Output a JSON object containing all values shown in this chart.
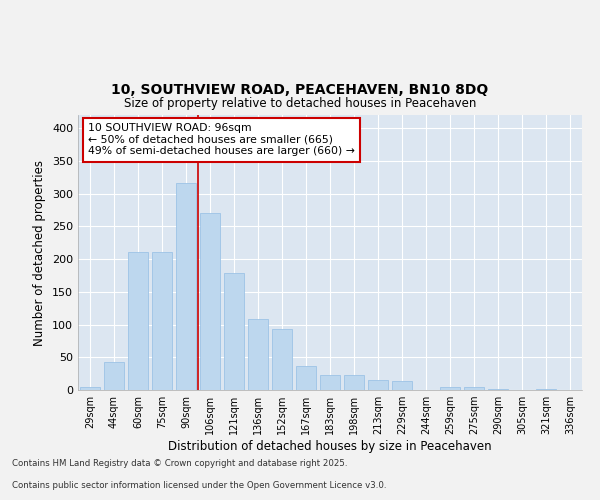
{
  "title_line1": "10, SOUTHVIEW ROAD, PEACEHAVEN, BN10 8DQ",
  "title_line2": "Size of property relative to detached houses in Peacehaven",
  "xlabel": "Distribution of detached houses by size in Peacehaven",
  "ylabel": "Number of detached properties",
  "categories": [
    "29sqm",
    "44sqm",
    "60sqm",
    "75sqm",
    "90sqm",
    "106sqm",
    "121sqm",
    "136sqm",
    "152sqm",
    "167sqm",
    "183sqm",
    "198sqm",
    "213sqm",
    "229sqm",
    "244sqm",
    "259sqm",
    "275sqm",
    "290sqm",
    "305sqm",
    "321sqm",
    "336sqm"
  ],
  "values": [
    5,
    43,
    211,
    211,
    316,
    271,
    178,
    108,
    93,
    37,
    23,
    23,
    15,
    13,
    0,
    5,
    5,
    1,
    0,
    2,
    0
  ],
  "bar_color": "#bdd7ee",
  "bar_edge_color": "#9dc3e6",
  "vline_x_index": 4,
  "vline_color": "#cc0000",
  "annotation_text": "10 SOUTHVIEW ROAD: 96sqm\n← 50% of detached houses are smaller (665)\n49% of semi-detached houses are larger (660) →",
  "annotation_box_color": "#ffffff",
  "annotation_box_edge": "#cc0000",
  "ylim": [
    0,
    420
  ],
  "yticks": [
    0,
    50,
    100,
    150,
    200,
    250,
    300,
    350,
    400
  ],
  "background_color": "#dce6f1",
  "grid_color": "#ffffff",
  "fig_background": "#f2f2f2",
  "footer_line1": "Contains HM Land Registry data © Crown copyright and database right 2025.",
  "footer_line2": "Contains public sector information licensed under the Open Government Licence v3.0."
}
